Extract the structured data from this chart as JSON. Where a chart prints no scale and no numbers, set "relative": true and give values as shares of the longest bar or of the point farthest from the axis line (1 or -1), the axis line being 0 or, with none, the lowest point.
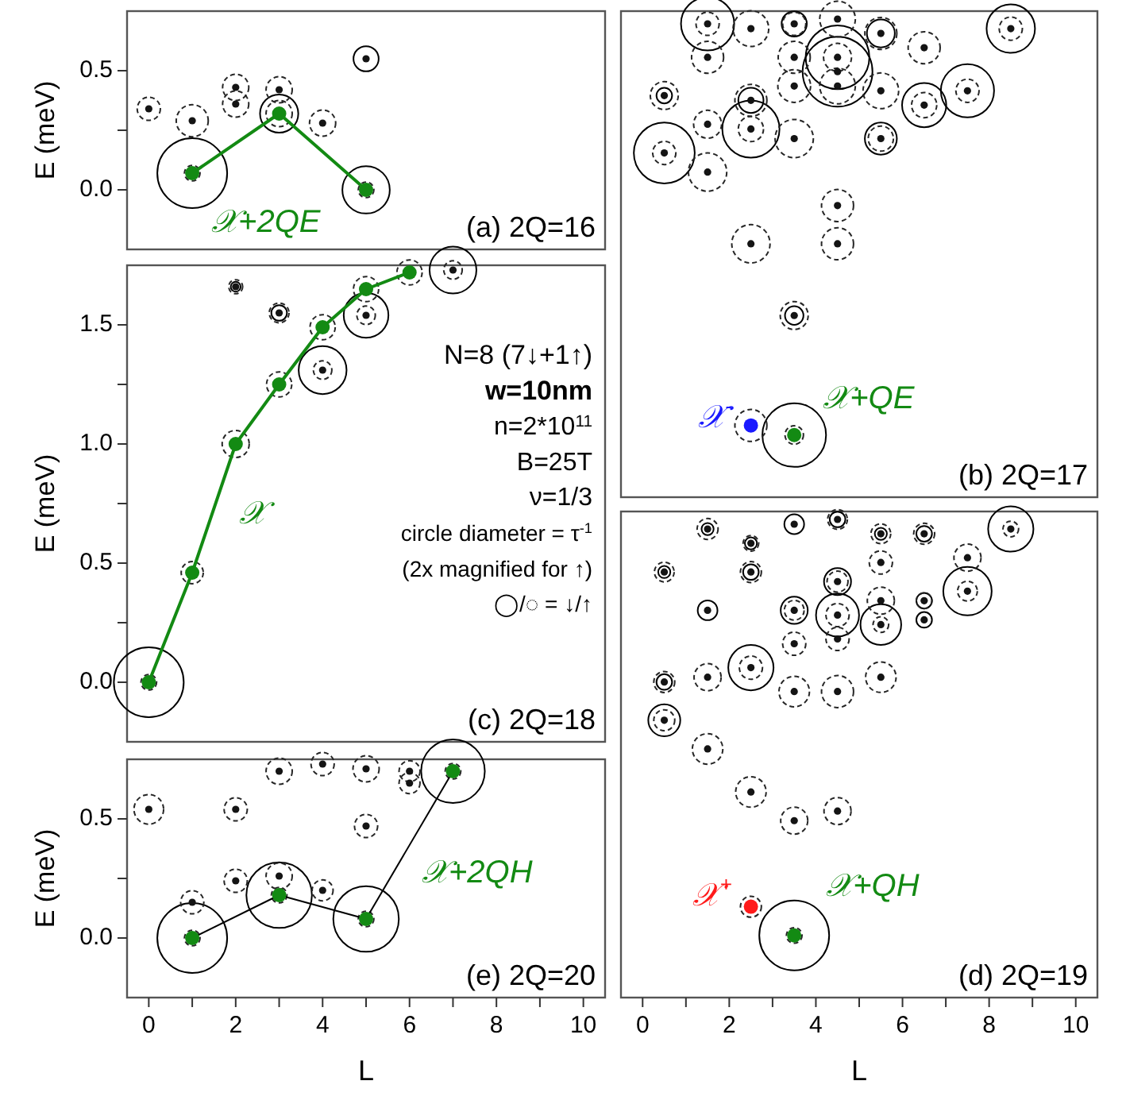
{
  "chart_data": [
    {
      "type": "scatter",
      "xlim": [
        -0.5,
        10.5
      ],
      "ylim": [
        -0.25,
        0.75
      ],
      "ylabel": "E (meV)",
      "tick_labels": "y",
      "yticks": [
        {
          "value": 0,
          "label": "0.0"
        },
        {
          "value": 0.25,
          "label": null
        },
        {
          "value": 0.5,
          "label": "0.5"
        }
      ],
      "annotations": [
        "(a) 2Q=16"
      ],
      "series": [
        {
          "type": "bubble",
          "line_style": "solid",
          "color": "#000000",
          "x": [
            1,
            3,
            5,
            5
          ],
          "values": [
            0.07,
            0.32,
            0.55,
            0.0
          ],
          "sizes": [
            1,
            0.3,
            0.13,
            0.46
          ]
        },
        {
          "type": "bubble",
          "line_style": "dashed",
          "color": "#262626",
          "x": [
            0,
            1,
            2,
            2,
            3,
            3,
            4,
            1,
            5
          ],
          "values": [
            0.34,
            0.29,
            0.43,
            0.36,
            0.42,
            0.32,
            0.28,
            0.07,
            0.0
          ],
          "sizes": [
            0.11,
            0.21,
            0.14,
            0.14,
            0.14,
            0.14,
            0.14,
            0.05,
            0.05
          ]
        },
        {
          "type": "scatter",
          "marker": "circle",
          "color": "#141414",
          "x": [
            0,
            1,
            2,
            2,
            3,
            4,
            5
          ],
          "values": [
            0.34,
            0.29,
            0.43,
            0.36,
            0.42,
            0.28,
            0.55
          ]
        },
        {
          "type": "line",
          "name": "𝒳+2QE",
          "marker": "circle",
          "color": "#138a13",
          "x": [
            1,
            3,
            5
          ],
          "values": [
            0.07,
            0.32,
            0.0
          ]
        }
      ]
    },
    {
      "type": "scatter",
      "xlim": [
        -0.5,
        10.5
      ],
      "relative": true,
      "tick_labels": false,
      "annotations": [
        "(b) 2Q=17"
      ],
      "series": [
        {
          "type": "bubble",
          "line_style": "solid",
          "color": "#000000",
          "x": [
            1.5,
            3.5,
            5.5,
            8.5,
            4.5,
            4.5,
            7.5,
            6.5,
            0.5,
            2.5,
            2.5,
            5.5,
            0.5,
            3.5,
            3.5
          ],
          "values": [
            0.99,
            0.99,
            0.97,
            0.98,
            0.92,
            0.89,
            0.85,
            0.82,
            0.84,
            0.83,
            0.77,
            0.75,
            0.72,
            0.38,
            0.13
          ],
          "sizes": [
            0.58,
            0.13,
            0.16,
            0.48,
            0.83,
            1,
            0.58,
            0.4,
            0.05,
            0.13,
            0.67,
            0.21,
            0.76,
            0.07,
            0.83
          ]
        },
        {
          "type": "bubble",
          "line_style": "dashed",
          "color": "#262626",
          "x": [
            1.5,
            2.5,
            3.5,
            4.5,
            5.5,
            6.5,
            8.5,
            1.5,
            3.5,
            4.5,
            3.5,
            4.5,
            5.5,
            7.5,
            6.5,
            0.5,
            2.5,
            1.5,
            2.5,
            3.5,
            5.5,
            0.5,
            1.5,
            4.5,
            4.5,
            2.5,
            3.5,
            2.5,
            3.5
          ],
          "values": [
            0.99,
            0.98,
            0.99,
            1.0,
            0.97,
            0.94,
            0.98,
            0.92,
            0.92,
            0.92,
            0.86,
            0.86,
            0.85,
            0.85,
            0.82,
            0.84,
            0.83,
            0.78,
            0.77,
            0.75,
            0.75,
            0.72,
            0.68,
            0.61,
            0.53,
            0.53,
            0.38,
            0.15,
            0.13
          ],
          "sizes": [
            0.11,
            0.26,
            0.11,
            0.26,
            0.21,
            0.21,
            0.11,
            0.21,
            0.21,
            0.16,
            0.22,
            0.26,
            0.26,
            0.11,
            0.13,
            0.16,
            0.21,
            0.16,
            0.13,
            0.3,
            0.13,
            0.11,
            0.3,
            0.21,
            0.21,
            0.3,
            0.16,
            0.21,
            0.07
          ]
        },
        {
          "type": "scatter",
          "marker": "circle",
          "color": "#141414",
          "x": [
            1.5,
            2.5,
            3.5,
            4.5,
            5.5,
            6.5,
            8.5,
            1.5,
            3.5,
            4.5,
            4.5,
            3.5,
            4.5,
            5.5,
            7.5,
            6.5,
            0.5,
            2.5,
            1.5,
            2.5,
            3.5,
            5.5,
            0.5,
            1.5,
            4.5,
            4.5,
            2.5,
            3.5
          ],
          "values": [
            0.99,
            0.98,
            0.99,
            1.0,
            0.97,
            0.94,
            0.98,
            0.92,
            0.92,
            0.92,
            0.89,
            0.86,
            0.86,
            0.85,
            0.85,
            0.82,
            0.84,
            0.83,
            0.78,
            0.77,
            0.75,
            0.75,
            0.72,
            0.68,
            0.61,
            0.53,
            0.53,
            0.38
          ]
        },
        {
          "type": "scatter",
          "name": "𝒳$^{-}$",
          "marker": "circle",
          "color": "#1a1aff",
          "x": [
            2.5
          ],
          "values": [
            0.15
          ]
        },
        {
          "type": "scatter",
          "name": "𝒳+QE",
          "marker": "circle",
          "color": "#138a13",
          "x": [
            3.5
          ],
          "values": [
            0.13
          ]
        }
      ]
    },
    {
      "type": "scatter",
      "xlim": [
        -0.5,
        10.5
      ],
      "ylim": [
        -0.25,
        1.75
      ],
      "ylabel": "E (meV)",
      "tick_labels": "y",
      "yticks": [
        {
          "value": 0,
          "label": "0.0"
        },
        {
          "value": 0.25,
          "label": null
        },
        {
          "value": 0.5,
          "label": "0.5"
        },
        {
          "value": 0.75,
          "label": null
        },
        {
          "value": 1,
          "label": "1.0"
        },
        {
          "value": 1.25,
          "label": null
        },
        {
          "value": 1.5,
          "label": "1.5"
        }
      ],
      "annotations": [
        "N=8 (7↓+1↑)",
        "w=10nm",
        "n=2*10$^{11}$",
        "B=25T",
        "ν=1/3",
        "circle diameter = τ$^{-1}$",
        "(2x magnified for ↑)",
        "◯/◌ = ↓/↑",
        "(c) 2Q=18"
      ],
      "series": [
        {
          "type": "bubble",
          "line_style": "solid",
          "color": "#000000",
          "x": [
            0,
            4,
            5,
            7,
            2,
            3
          ],
          "values": [
            0,
            1.31,
            1.54,
            1.73,
            1.66,
            1.55
          ],
          "sizes": [
            1,
            0.47,
            0.41,
            0.45,
            0.02,
            0.05
          ]
        },
        {
          "type": "bubble",
          "line_style": "dashed",
          "color": "#262626",
          "x": [
            0,
            1,
            2,
            3,
            4,
            5,
            6,
            4,
            5,
            7,
            2,
            3
          ],
          "values": [
            0,
            0.46,
            1.0,
            1.25,
            1.49,
            1.65,
            1.72,
            1.31,
            1.54,
            1.73,
            1.66,
            1.55
          ],
          "sizes": [
            0.05,
            0.1,
            0.15,
            0.13,
            0.13,
            0.13,
            0.13,
            0.07,
            0.07,
            0.07,
            0.04,
            0.08
          ]
        },
        {
          "type": "scatter",
          "marker": "circle",
          "color": "#141414",
          "x": [
            2,
            3,
            4,
            5,
            7
          ],
          "values": [
            1.66,
            1.55,
            1.31,
            1.54,
            1.73
          ]
        },
        {
          "type": "line",
          "name": "𝒳",
          "marker": "circle",
          "color": "#138a13",
          "x": [
            0,
            1,
            2,
            3,
            4,
            5,
            6
          ],
          "values": [
            0,
            0.46,
            1.0,
            1.25,
            1.49,
            1.65,
            1.72
          ]
        }
      ]
    },
    {
      "type": "scatter",
      "xlim": [
        -0.5,
        10.5
      ],
      "relative": true,
      "tick_labels": "x",
      "xlabel": "L",
      "xticks": [
        0,
        {
          "value": 1,
          "label": null
        },
        2,
        {
          "value": 3,
          "label": null
        },
        4,
        {
          "value": 5,
          "label": null
        },
        6,
        {
          "value": 7,
          "label": null
        },
        8,
        {
          "value": 9,
          "label": null
        },
        10
      ],
      "annotations": [
        "(d) 2Q=19"
      ],
      "series": [
        {
          "type": "bubble",
          "line_style": "solid",
          "color": "#000000",
          "x": [
            1.5,
            3.5,
            4.5,
            5.5,
            6.5,
            8.5,
            2.5,
            2.5,
            0.5,
            4.5,
            7.5,
            1.5,
            3.5,
            4.5,
            5.5,
            6.5,
            6.5,
            2.5,
            0.5,
            0.5,
            3.5
          ],
          "values": [
            0.98,
            0.99,
            1.0,
            0.97,
            0.97,
            0.98,
            0.95,
            0.89,
            0.89,
            0.87,
            0.85,
            0.81,
            0.81,
            0.8,
            0.78,
            0.83,
            0.79,
            0.69,
            0.66,
            0.58,
            0.13
          ],
          "sizes": [
            0.03,
            0.08,
            0.05,
            0.03,
            0.05,
            0.42,
            0.03,
            0.05,
            0.03,
            0.15,
            0.48,
            0.08,
            0.15,
            0.38,
            0.34,
            0.05,
            0.05,
            0.42,
            0.05,
            0.21,
            1
          ]
        },
        {
          "type": "bubble",
          "line_style": "dashed",
          "color": "#262626",
          "x": [
            1.5,
            4.5,
            5.5,
            6.5,
            8.5,
            2.5,
            2.5,
            0.5,
            5.5,
            7.5,
            4.5,
            7.5,
            3.5,
            4.5,
            5.5,
            5.5,
            6.5,
            3.5,
            4.5,
            2.5,
            0.5,
            1.5,
            3.5,
            4.5,
            5.5,
            0.5,
            1.5,
            2.5,
            3.5,
            4.5,
            2.5,
            3.5
          ],
          "values": [
            0.98,
            1.0,
            0.97,
            0.97,
            0.98,
            0.95,
            0.89,
            0.89,
            0.91,
            0.92,
            0.87,
            0.85,
            0.81,
            0.8,
            0.83,
            0.78,
            0.83,
            0.74,
            0.75,
            0.69,
            0.66,
            0.67,
            0.64,
            0.64,
            0.67,
            0.58,
            0.52,
            0.43,
            0.37,
            0.39,
            0.19,
            0.13
          ],
          "sizes": [
            0.09,
            0.08,
            0.08,
            0.09,
            0.05,
            0.05,
            0.09,
            0.08,
            0.11,
            0.15,
            0.09,
            0.08,
            0.08,
            0.11,
            0.15,
            0.05,
            0.05,
            0.11,
            0.11,
            0.11,
            0.09,
            0.15,
            0.19,
            0.21,
            0.19,
            0.09,
            0.19,
            0.19,
            0.15,
            0.15,
            0.09,
            0.05
          ]
        },
        {
          "type": "scatter",
          "marker": "circle",
          "color": "#141414",
          "x": [
            1.5,
            3.5,
            4.5,
            5.5,
            6.5,
            8.5,
            2.5,
            2.5,
            0.5,
            5.5,
            7.5,
            4.5,
            7.5,
            1.5,
            3.5,
            4.5,
            5.5,
            5.5,
            6.5,
            6.5,
            3.5,
            4.5,
            2.5,
            0.5,
            1.5,
            3.5,
            4.5,
            5.5,
            0.5,
            1.5,
            2.5,
            3.5,
            4.5
          ],
          "values": [
            0.98,
            0.99,
            1.0,
            0.97,
            0.97,
            0.98,
            0.95,
            0.89,
            0.89,
            0.91,
            0.92,
            0.87,
            0.85,
            0.81,
            0.81,
            0.8,
            0.83,
            0.78,
            0.83,
            0.79,
            0.74,
            0.75,
            0.69,
            0.66,
            0.67,
            0.64,
            0.64,
            0.67,
            0.58,
            0.52,
            0.43,
            0.37,
            0.39
          ]
        },
        {
          "type": "scatter",
          "name": "𝒳$^{+}$",
          "marker": "circle",
          "color": "#ff1a1a",
          "x": [
            2.5
          ],
          "values": [
            0.19
          ]
        },
        {
          "type": "scatter",
          "name": "𝒳+QH",
          "marker": "circle",
          "color": "#138a13",
          "x": [
            3.5
          ],
          "values": [
            0.13
          ]
        }
      ]
    },
    {
      "type": "scatter",
      "xlim": [
        -0.5,
        10.5
      ],
      "ylim": [
        -0.25,
        0.75
      ],
      "ylabel": "E (meV)",
      "xlabel": "L",
      "yticks": [
        {
          "value": 0,
          "label": "0.0"
        },
        {
          "value": 0.25,
          "label": null
        },
        {
          "value": 0.5,
          "label": "0.5"
        }
      ],
      "xticks": [
        0,
        {
          "value": 1,
          "label": null
        },
        2,
        {
          "value": 3,
          "label": null
        },
        4,
        {
          "value": 5,
          "label": null
        },
        6,
        {
          "value": 7,
          "label": null
        },
        8,
        {
          "value": 9,
          "label": null
        },
        10
      ],
      "annotations": [
        "(e) 2Q=20"
      ],
      "series": [
        {
          "type": "bubble",
          "line_style": "solid",
          "color": "#000000",
          "x": [
            1,
            3,
            5,
            7
          ],
          "values": [
            0,
            0.18,
            0.08,
            0.7
          ],
          "sizes": [
            1,
            0.88,
            0.88,
            0.83
          ]
        },
        {
          "type": "bubble",
          "line_style": "dashed",
          "color": "#262626",
          "x": [
            1,
            3,
            5,
            7,
            0,
            1,
            2,
            2,
            3,
            3,
            4,
            4,
            5,
            5,
            6,
            6
          ],
          "values": [
            0,
            0.18,
            0.08,
            0.7,
            0.54,
            0.15,
            0.54,
            0.24,
            0.7,
            0.26,
            0.73,
            0.2,
            0.71,
            0.47,
            0.7,
            0.65
          ],
          "sizes": [
            0.05,
            0.05,
            0.05,
            0.05,
            0.18,
            0.11,
            0.11,
            0.11,
            0.14,
            0.14,
            0.11,
            0.09,
            0.14,
            0.11,
            0.09,
            0.09
          ]
        },
        {
          "type": "scatter",
          "marker": "circle",
          "color": "#141414",
          "x": [
            0,
            1,
            2,
            2,
            3,
            3,
            4,
            4,
            5,
            5,
            6,
            6
          ],
          "values": [
            0.54,
            0.15,
            0.54,
            0.24,
            0.7,
            0.26,
            0.73,
            0.2,
            0.71,
            0.47,
            0.7,
            0.65
          ]
        },
        {
          "type": "line",
          "marker": "none",
          "color": "#000000",
          "x": [
            1,
            3,
            5,
            7
          ],
          "values": [
            0,
            0.18,
            0.08,
            0.7
          ]
        },
        {
          "type": "scatter",
          "name": "𝒳+2QH",
          "marker": "circle",
          "color": "#138a13",
          "x": [
            1,
            3,
            5,
            7
          ],
          "values": [
            0,
            0.18,
            0.08,
            0.7
          ]
        }
      ]
    }
  ]
}
